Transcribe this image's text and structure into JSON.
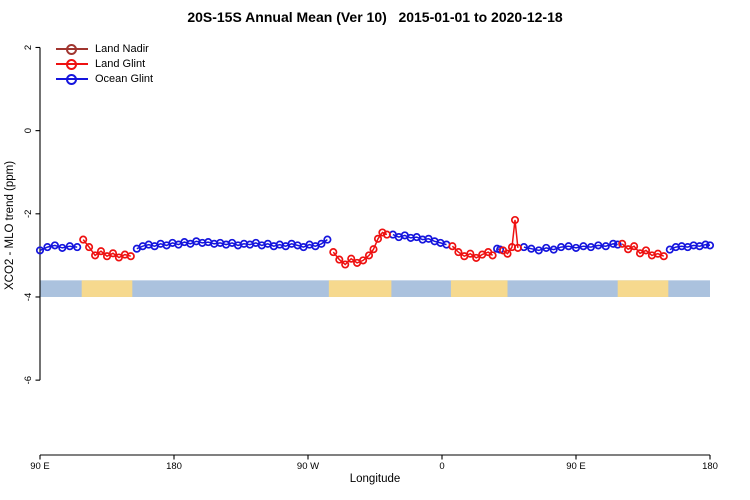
{
  "chart_data": {
    "type": "line",
    "title": "20S-15S Annual Mean (Ver 10)   2015-01-01 to 2020-12-18",
    "xlabel": "Longitude",
    "ylabel": "XCO2 - MLO trend (ppm)",
    "xlim": [
      90,
      540
    ],
    "ylim": [
      -7.8,
      2.3
    ],
    "grid": false,
    "legend_position": "top-left",
    "x_ticks": [
      {
        "v": 90,
        "label": "90 E"
      },
      {
        "v": 180,
        "label": "180"
      },
      {
        "v": 270,
        "label": "90 W"
      },
      {
        "v": 360,
        "label": "0"
      },
      {
        "v": 450,
        "label": "90 E"
      },
      {
        "v": 540,
        "label": "180"
      }
    ],
    "y_ticks": [
      {
        "v": 2,
        "label": "2"
      },
      {
        "v": 0,
        "label": "0"
      },
      {
        "v": -2,
        "label": "-2"
      },
      {
        "v": -4,
        "label": "-4"
      },
      {
        "v": -6,
        "label": "-6"
      }
    ],
    "legend": [
      {
        "name": "Land Nadir",
        "color": "#A0352F"
      },
      {
        "name": "Land Glint",
        "color": "#EE1111"
      },
      {
        "name": "Ocean Glint",
        "color": "#1515DD"
      }
    ],
    "land_ocean_band": {
      "y_range": [
        -3.6,
        -4.0
      ],
      "ocean_color": "#ABC2DE",
      "land_color": "#F6D98E",
      "land_segments": [
        [
          118,
          152
        ],
        [
          284,
          326
        ],
        [
          366,
          404
        ],
        [
          478,
          512
        ]
      ]
    },
    "series": [
      {
        "name": "Land Nadir",
        "color": "#A0352F",
        "marker": "open-circle",
        "segments": []
      },
      {
        "name": "Land Glint",
        "color": "#EE1111",
        "marker": "open-circle",
        "segments": [
          {
            "x": [
              119,
              123,
              127,
              131,
              135,
              139,
              143,
              147,
              151
            ],
            "y": [
              -2.62,
              -2.8,
              -3.0,
              -2.9,
              -3.02,
              -2.95,
              -3.05,
              -2.98,
              -3.02
            ]
          },
          {
            "x": [
              287,
              291,
              295,
              299,
              303,
              307,
              311,
              314,
              317,
              320,
              323
            ],
            "y": [
              -2.92,
              -3.1,
              -3.22,
              -3.08,
              -3.18,
              -3.12,
              -3.0,
              -2.85,
              -2.6,
              -2.45,
              -2.5
            ]
          },
          {
            "x": [
              367,
              371,
              375,
              379,
              383,
              387,
              391,
              394
            ],
            "y": [
              -2.78,
              -2.92,
              -3.02,
              -2.96,
              -3.06,
              -2.98,
              -2.92,
              -3.0
            ]
          },
          {
            "x": [
              401,
              404,
              407,
              409,
              411
            ],
            "y": [
              -2.88,
              -2.96,
              -2.8,
              -2.15,
              -2.82
            ]
          },
          {
            "x": [
              481,
              485,
              489,
              493,
              497,
              501,
              505,
              509
            ],
            "y": [
              -2.72,
              -2.85,
              -2.78,
              -2.95,
              -2.88,
              -3.0,
              -2.96,
              -3.02
            ]
          }
        ]
      },
      {
        "name": "Ocean Glint",
        "color": "#1515DD",
        "marker": "open-circle",
        "segments": [
          {
            "x": [
              90,
              95,
              100,
              105,
              110,
              115
            ],
            "y": [
              -2.88,
              -2.8,
              -2.76,
              -2.82,
              -2.78,
              -2.8
            ]
          },
          {
            "x": [
              155,
              159,
              163,
              167,
              171,
              175,
              179,
              183,
              187,
              191,
              195,
              199,
              203,
              207,
              211,
              215,
              219,
              223,
              227,
              231,
              235,
              239,
              243,
              247,
              251,
              255,
              259,
              263,
              267,
              271,
              275,
              279,
              283
            ],
            "y": [
              -2.84,
              -2.78,
              -2.74,
              -2.78,
              -2.72,
              -2.76,
              -2.7,
              -2.74,
              -2.68,
              -2.72,
              -2.66,
              -2.7,
              -2.68,
              -2.72,
              -2.7,
              -2.74,
              -2.7,
              -2.76,
              -2.72,
              -2.74,
              -2.7,
              -2.76,
              -2.72,
              -2.78,
              -2.74,
              -2.78,
              -2.72,
              -2.76,
              -2.8,
              -2.74,
              -2.78,
              -2.72,
              -2.62
            ]
          },
          {
            "x": [
              327,
              331,
              335,
              339,
              343,
              347,
              351,
              355,
              359,
              363
            ],
            "y": [
              -2.5,
              -2.56,
              -2.52,
              -2.58,
              -2.56,
              -2.62,
              -2.6,
              -2.66,
              -2.7,
              -2.74
            ]
          },
          {
            "x": [
              397,
              399
            ],
            "y": [
              -2.84,
              -2.86
            ]
          },
          {
            "x": [
              415,
              420,
              425,
              430,
              435,
              440,
              445,
              450,
              455,
              460,
              465,
              470,
              475,
              478
            ],
            "y": [
              -2.8,
              -2.84,
              -2.88,
              -2.82,
              -2.86,
              -2.8,
              -2.78,
              -2.82,
              -2.78,
              -2.8,
              -2.76,
              -2.78,
              -2.72,
              -2.74
            ]
          },
          {
            "x": [
              513,
              517,
              521,
              525,
              529,
              533,
              537,
              540
            ],
            "y": [
              -2.86,
              -2.8,
              -2.78,
              -2.8,
              -2.76,
              -2.78,
              -2.74,
              -2.76
            ]
          }
        ]
      }
    ]
  }
}
